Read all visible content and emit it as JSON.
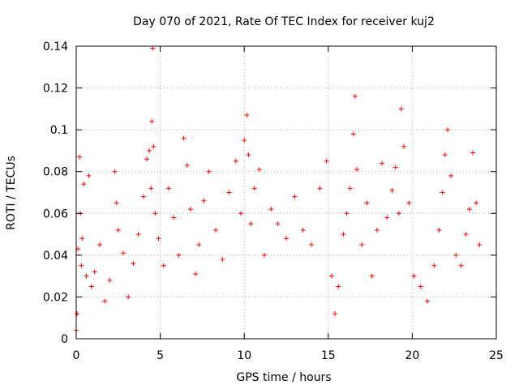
{
  "chart_data": {
    "type": "scatter",
    "title": "Day 070 of 2021, Rate Of TEC Index for receiver kuj2",
    "xlabel": "GPS time / hours",
    "ylabel": "ROTI / TECUs",
    "xlim": [
      0,
      25
    ],
    "ylim": [
      0,
      0.14
    ],
    "x_ticks": [
      0,
      5,
      10,
      15,
      20,
      25
    ],
    "x_tick_labels": [
      "0",
      "5",
      "10",
      "15",
      "20",
      "25"
    ],
    "y_ticks": [
      0,
      0.02,
      0.04,
      0.06,
      0.08,
      0.1,
      0.12,
      0.14
    ],
    "y_tick_labels": [
      "0",
      "0.02",
      "0.04",
      "0.06",
      "0.08",
      "0.1",
      "0.12",
      "0.14"
    ],
    "grid": true,
    "marker": "+",
    "series": [
      {
        "name": "ROTI",
        "color": "#ff0000",
        "x": [
          0.0,
          0.05,
          0.1,
          0.2,
          0.25,
          0.3,
          0.35,
          0.45,
          0.6,
          0.75,
          0.9,
          1.1,
          1.4,
          1.7,
          2.0,
          2.3,
          2.4,
          2.5,
          2.8,
          3.1,
          3.4,
          3.7,
          4.0,
          4.2,
          4.35,
          4.45,
          4.5,
          4.55,
          4.6,
          4.7,
          4.9,
          5.2,
          5.5,
          5.8,
          6.1,
          6.4,
          6.6,
          6.8,
          7.1,
          7.3,
          7.6,
          7.9,
          8.3,
          8.7,
          9.1,
          9.5,
          9.8,
          10.0,
          10.15,
          10.25,
          10.4,
          10.6,
          10.9,
          11.2,
          11.6,
          12.0,
          12.5,
          13.0,
          13.5,
          14.0,
          14.5,
          14.9,
          15.2,
          15.4,
          15.6,
          15.9,
          16.1,
          16.3,
          16.5,
          16.6,
          16.7,
          17.0,
          17.3,
          17.6,
          17.9,
          18.2,
          18.5,
          18.8,
          19.0,
          19.2,
          19.35,
          19.5,
          19.8,
          20.1,
          20.5,
          20.9,
          21.3,
          21.6,
          21.8,
          21.95,
          22.1,
          22.3,
          22.6,
          22.9,
          23.2,
          23.4,
          23.6,
          23.8,
          24.0
        ],
        "y": [
          0.004,
          0.012,
          0.043,
          0.087,
          0.06,
          0.035,
          0.048,
          0.074,
          0.03,
          0.078,
          0.025,
          0.032,
          0.045,
          0.018,
          0.028,
          0.08,
          0.065,
          0.052,
          0.041,
          0.02,
          0.036,
          0.05,
          0.068,
          0.086,
          0.09,
          0.072,
          0.104,
          0.139,
          0.092,
          0.06,
          0.048,
          0.035,
          0.072,
          0.058,
          0.04,
          0.096,
          0.083,
          0.062,
          0.031,
          0.045,
          0.066,
          0.08,
          0.052,
          0.038,
          0.07,
          0.085,
          0.06,
          0.095,
          0.107,
          0.088,
          0.055,
          0.072,
          0.081,
          0.04,
          0.062,
          0.055,
          0.048,
          0.068,
          0.052,
          0.045,
          0.072,
          0.085,
          0.03,
          0.012,
          0.025,
          0.05,
          0.06,
          0.072,
          0.098,
          0.116,
          0.081,
          0.045,
          0.065,
          0.03,
          0.052,
          0.084,
          0.058,
          0.071,
          0.082,
          0.06,
          0.11,
          0.092,
          0.065,
          0.03,
          0.025,
          0.018,
          0.035,
          0.052,
          0.07,
          0.088,
          0.1,
          0.078,
          0.04,
          0.035,
          0.05,
          0.062,
          0.089,
          0.065,
          0.045
        ]
      }
    ]
  }
}
